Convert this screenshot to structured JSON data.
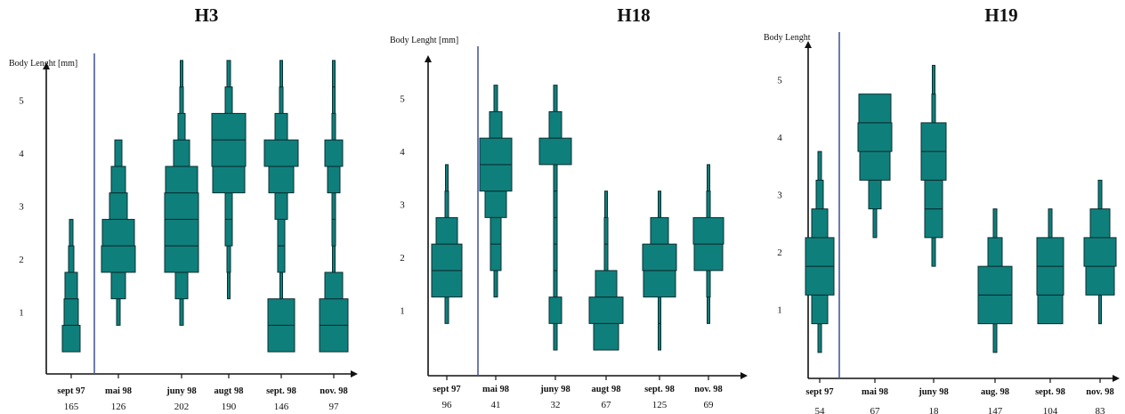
{
  "chart_data": [
    {
      "type": "kite",
      "title": "H3",
      "ylabel": "Body Lenght [mm]",
      "y_ticks": [
        1,
        2,
        3,
        4,
        5
      ],
      "categories": [
        "sept 97",
        "mai 98",
        "juny 98",
        "augt 98",
        "sept. 98",
        "nov. 98"
      ],
      "counts": [
        "165",
        "126",
        "202",
        "190",
        "146",
        "97"
      ],
      "boxes": [
        {
          "category": "sept 97",
          "bins": [
            [
              0.5,
              0.5
            ],
            [
              1,
              0.4
            ],
            [
              1.5,
              0.35
            ],
            [
              2,
              0.15
            ],
            [
              2.5,
              0.1
            ]
          ]
        },
        {
          "category": "mai 98",
          "bins": [
            [
              1,
              0.1
            ],
            [
              1.5,
              0.4
            ],
            [
              2,
              0.95
            ],
            [
              2.5,
              0.9
            ],
            [
              3,
              0.5
            ],
            [
              3.5,
              0.4
            ],
            [
              4,
              0.2
            ]
          ]
        },
        {
          "category": "juny 98",
          "bins": [
            [
              1,
              0.1
            ],
            [
              1.5,
              0.35
            ],
            [
              2,
              0.95
            ],
            [
              2.5,
              0.95
            ],
            [
              3,
              0.95
            ],
            [
              3.5,
              0.9
            ],
            [
              4,
              0.45
            ],
            [
              4.5,
              0.2
            ],
            [
              5,
              0.1
            ],
            [
              5.5,
              0.05
            ]
          ]
        },
        {
          "category": "augt 98",
          "bins": [
            [
              1.5,
              0.05
            ],
            [
              2,
              0.1
            ],
            [
              2.5,
              0.2
            ],
            [
              3,
              0.2
            ],
            [
              3.5,
              0.9
            ],
            [
              4,
              0.95
            ],
            [
              4.5,
              0.95
            ],
            [
              5,
              0.2
            ],
            [
              5.5,
              0.1
            ]
          ]
        },
        {
          "category": "sept. 98",
          "bins": [
            [
              0.5,
              0.75
            ],
            [
              1,
              0.75
            ],
            [
              1.5,
              0.05
            ],
            [
              2,
              0.2
            ],
            [
              2.5,
              0.2
            ],
            [
              3,
              0.35
            ],
            [
              3.5,
              0.7
            ],
            [
              4,
              0.95
            ],
            [
              4.5,
              0.35
            ],
            [
              5,
              0.1
            ],
            [
              5.5,
              0.05
            ]
          ]
        },
        {
          "category": "nov. 98",
          "bins": [
            [
              0.5,
              0.8
            ],
            [
              1,
              0.8
            ],
            [
              1.5,
              0.5
            ],
            [
              2,
              0.05
            ],
            [
              2.5,
              0.1
            ],
            [
              3,
              0.1
            ],
            [
              3.5,
              0.35
            ],
            [
              4,
              0.5
            ],
            [
              4.5,
              0.1
            ],
            [
              5,
              0.05
            ],
            [
              5.5,
              0.05
            ]
          ]
        }
      ]
    },
    {
      "type": "kite",
      "title": "H18",
      "ylabel": "Body Lenght [mm]",
      "y_ticks": [
        1,
        2,
        3,
        4,
        5
      ],
      "categories": [
        "sept 97",
        "mai 98",
        "juny 98",
        "augt 98",
        "sept. 98",
        "nov. 98"
      ],
      "counts": [
        "96",
        "41",
        "32",
        "67",
        "125",
        "69"
      ],
      "boxes": [
        {
          "category": "sept 97",
          "bins": [
            [
              1,
              0.1
            ],
            [
              1.5,
              0.85
            ],
            [
              2,
              0.85
            ],
            [
              2.5,
              0.6
            ],
            [
              3,
              0.1
            ],
            [
              3.5,
              0.05
            ]
          ]
        },
        {
          "category": "mai 98",
          "bins": [
            [
              1.5,
              0.1
            ],
            [
              2,
              0.3
            ],
            [
              2.5,
              0.3
            ],
            [
              3,
              0.6
            ],
            [
              3.5,
              0.9
            ],
            [
              4,
              0.9
            ],
            [
              4.5,
              0.35
            ],
            [
              5,
              0.1
            ]
          ]
        },
        {
          "category": "juny 98",
          "bins": [
            [
              0.5,
              0.1
            ],
            [
              1,
              0.35
            ],
            [
              1.5,
              0.1
            ],
            [
              2,
              0.1
            ],
            [
              2.5,
              0.1
            ],
            [
              3,
              0.1
            ],
            [
              3.5,
              0.1
            ],
            [
              4,
              0.9
            ],
            [
              4.5,
              0.35
            ],
            [
              5,
              0.1
            ]
          ]
        },
        {
          "category": "augt 98",
          "bins": [
            [
              0.5,
              0.7
            ],
            [
              1,
              0.95
            ],
            [
              1.5,
              0.6
            ],
            [
              2,
              0.1
            ],
            [
              2.5,
              0.1
            ],
            [
              3,
              0.05
            ]
          ]
        },
        {
          "category": "sept. 98",
          "bins": [
            [
              0.5,
              0.05
            ],
            [
              1,
              0.05
            ],
            [
              1.5,
              0.9
            ],
            [
              2,
              0.95
            ],
            [
              2.5,
              0.5
            ],
            [
              3,
              0.05
            ]
          ]
        },
        {
          "category": "nov. 98",
          "bins": [
            [
              1,
              0.05
            ],
            [
              1.5,
              0.1
            ],
            [
              2,
              0.8
            ],
            [
              2.5,
              0.85
            ],
            [
              3,
              0.1
            ],
            [
              3.5,
              0.05
            ]
          ]
        }
      ]
    },
    {
      "type": "kite",
      "title": "H19",
      "ylabel": "Body Lenght",
      "y_ticks": [
        1,
        2,
        3,
        4,
        5
      ],
      "categories": [
        "sept 97",
        "mai 98",
        "juny 98",
        "aug. 98",
        "sept. 98",
        "nov. 98"
      ],
      "counts": [
        "54",
        "67",
        "18",
        "147",
        "104",
        "83"
      ],
      "boxes": [
        {
          "category": "sept 97",
          "bins": [
            [
              0.5,
              0.1
            ],
            [
              1,
              0.45
            ],
            [
              1.5,
              0.8
            ],
            [
              2,
              0.8
            ],
            [
              2.5,
              0.45
            ],
            [
              3,
              0.2
            ],
            [
              3.5,
              0.1
            ]
          ]
        },
        {
          "category": "mai 98",
          "bins": [
            [
              2.5,
              0.1
            ],
            [
              3,
              0.35
            ],
            [
              3.5,
              0.85
            ],
            [
              4,
              0.95
            ],
            [
              4.5,
              0.9
            ]
          ]
        },
        {
          "category": "juny 98",
          "bins": [
            [
              2,
              0.1
            ],
            [
              2.5,
              0.5
            ],
            [
              3,
              0.5
            ],
            [
              3.5,
              0.7
            ],
            [
              4,
              0.7
            ],
            [
              4.5,
              0.1
            ],
            [
              5,
              0.05
            ]
          ]
        },
        {
          "category": "aug. 98",
          "bins": [
            [
              0.5,
              0.1
            ],
            [
              1,
              0.95
            ],
            [
              1.5,
              0.95
            ],
            [
              2,
              0.4
            ],
            [
              2.5,
              0.1
            ]
          ]
        },
        {
          "category": "sept. 98",
          "bins": [
            [
              1,
              0.7
            ],
            [
              1.5,
              0.75
            ],
            [
              2,
              0.75
            ],
            [
              2.5,
              0.1
            ]
          ]
        },
        {
          "category": "nov. 98",
          "bins": [
            [
              1,
              0.05
            ],
            [
              1.5,
              0.8
            ],
            [
              2,
              0.9
            ],
            [
              2.5,
              0.55
            ],
            [
              3,
              0.1
            ]
          ]
        }
      ]
    }
  ],
  "colors": {
    "fill": "#0f7f7c",
    "stroke": "#0a2f30",
    "axis": "#111111",
    "separator": "#4a5a9a"
  }
}
